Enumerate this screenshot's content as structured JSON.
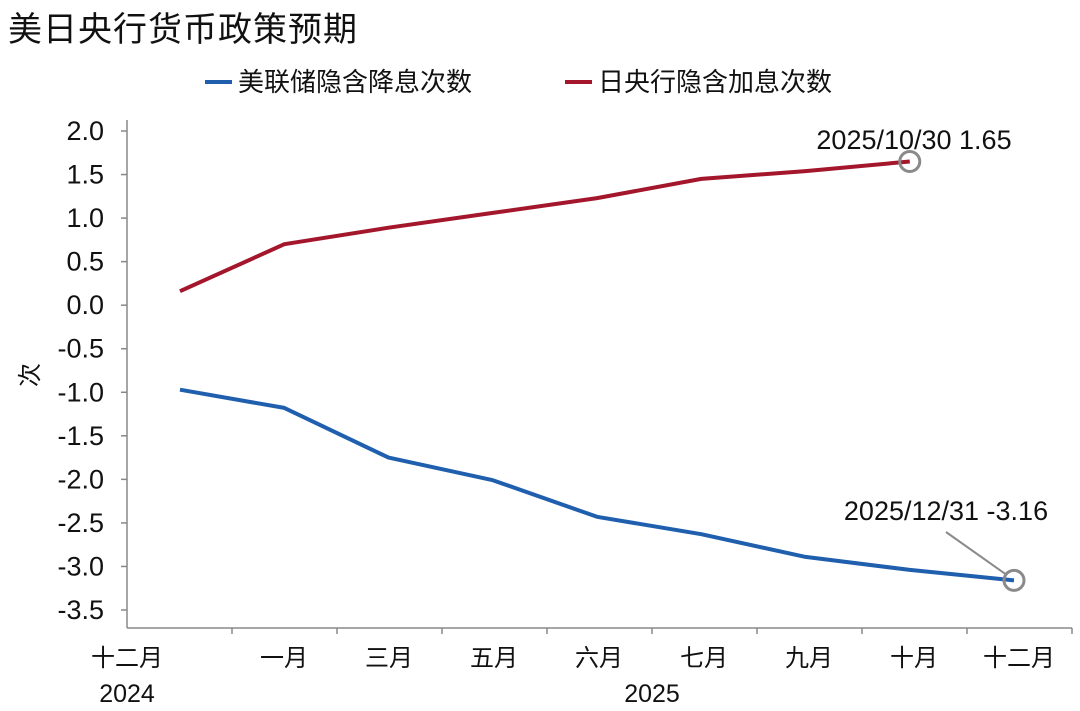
{
  "chart_data": {
    "type": "line",
    "title": "美日央行货币政策预期",
    "ylabel": "次",
    "xlabel": "",
    "ylim": [
      -3.5,
      2.0
    ],
    "yticks": [
      "2.0",
      "1.5",
      "1.0",
      "0.5",
      "0.0",
      "-0.5",
      "-1.0",
      "-1.5",
      "-2.0",
      "-2.5",
      "-3.0",
      "-3.5"
    ],
    "categories": [
      "十二月",
      "一月",
      "三月",
      "五月",
      "六月",
      "七月",
      "九月",
      "十月",
      "十二月"
    ],
    "year_labels": [
      "2024",
      "2025"
    ],
    "legend_position": "top-center",
    "series": [
      {
        "name": "美联储隐含降息次数",
        "color": "#1f5fad",
        "values": [
          -0.97,
          -1.18,
          -1.75,
          -2.01,
          -2.43,
          -2.63,
          -2.89,
          -3.04,
          -3.16
        ]
      },
      {
        "name": "日央行隐含加息次数",
        "color": "#a3162b",
        "values": [
          0.16,
          0.7,
          0.89,
          1.06,
          1.23,
          1.45,
          1.54,
          1.65,
          null
        ]
      }
    ],
    "annotations": [
      {
        "text": "2025/10/30 1.65",
        "series": 1,
        "index": 7
      },
      {
        "text": "2025/12/31 -3.16",
        "series": 0,
        "index": 8
      }
    ]
  }
}
